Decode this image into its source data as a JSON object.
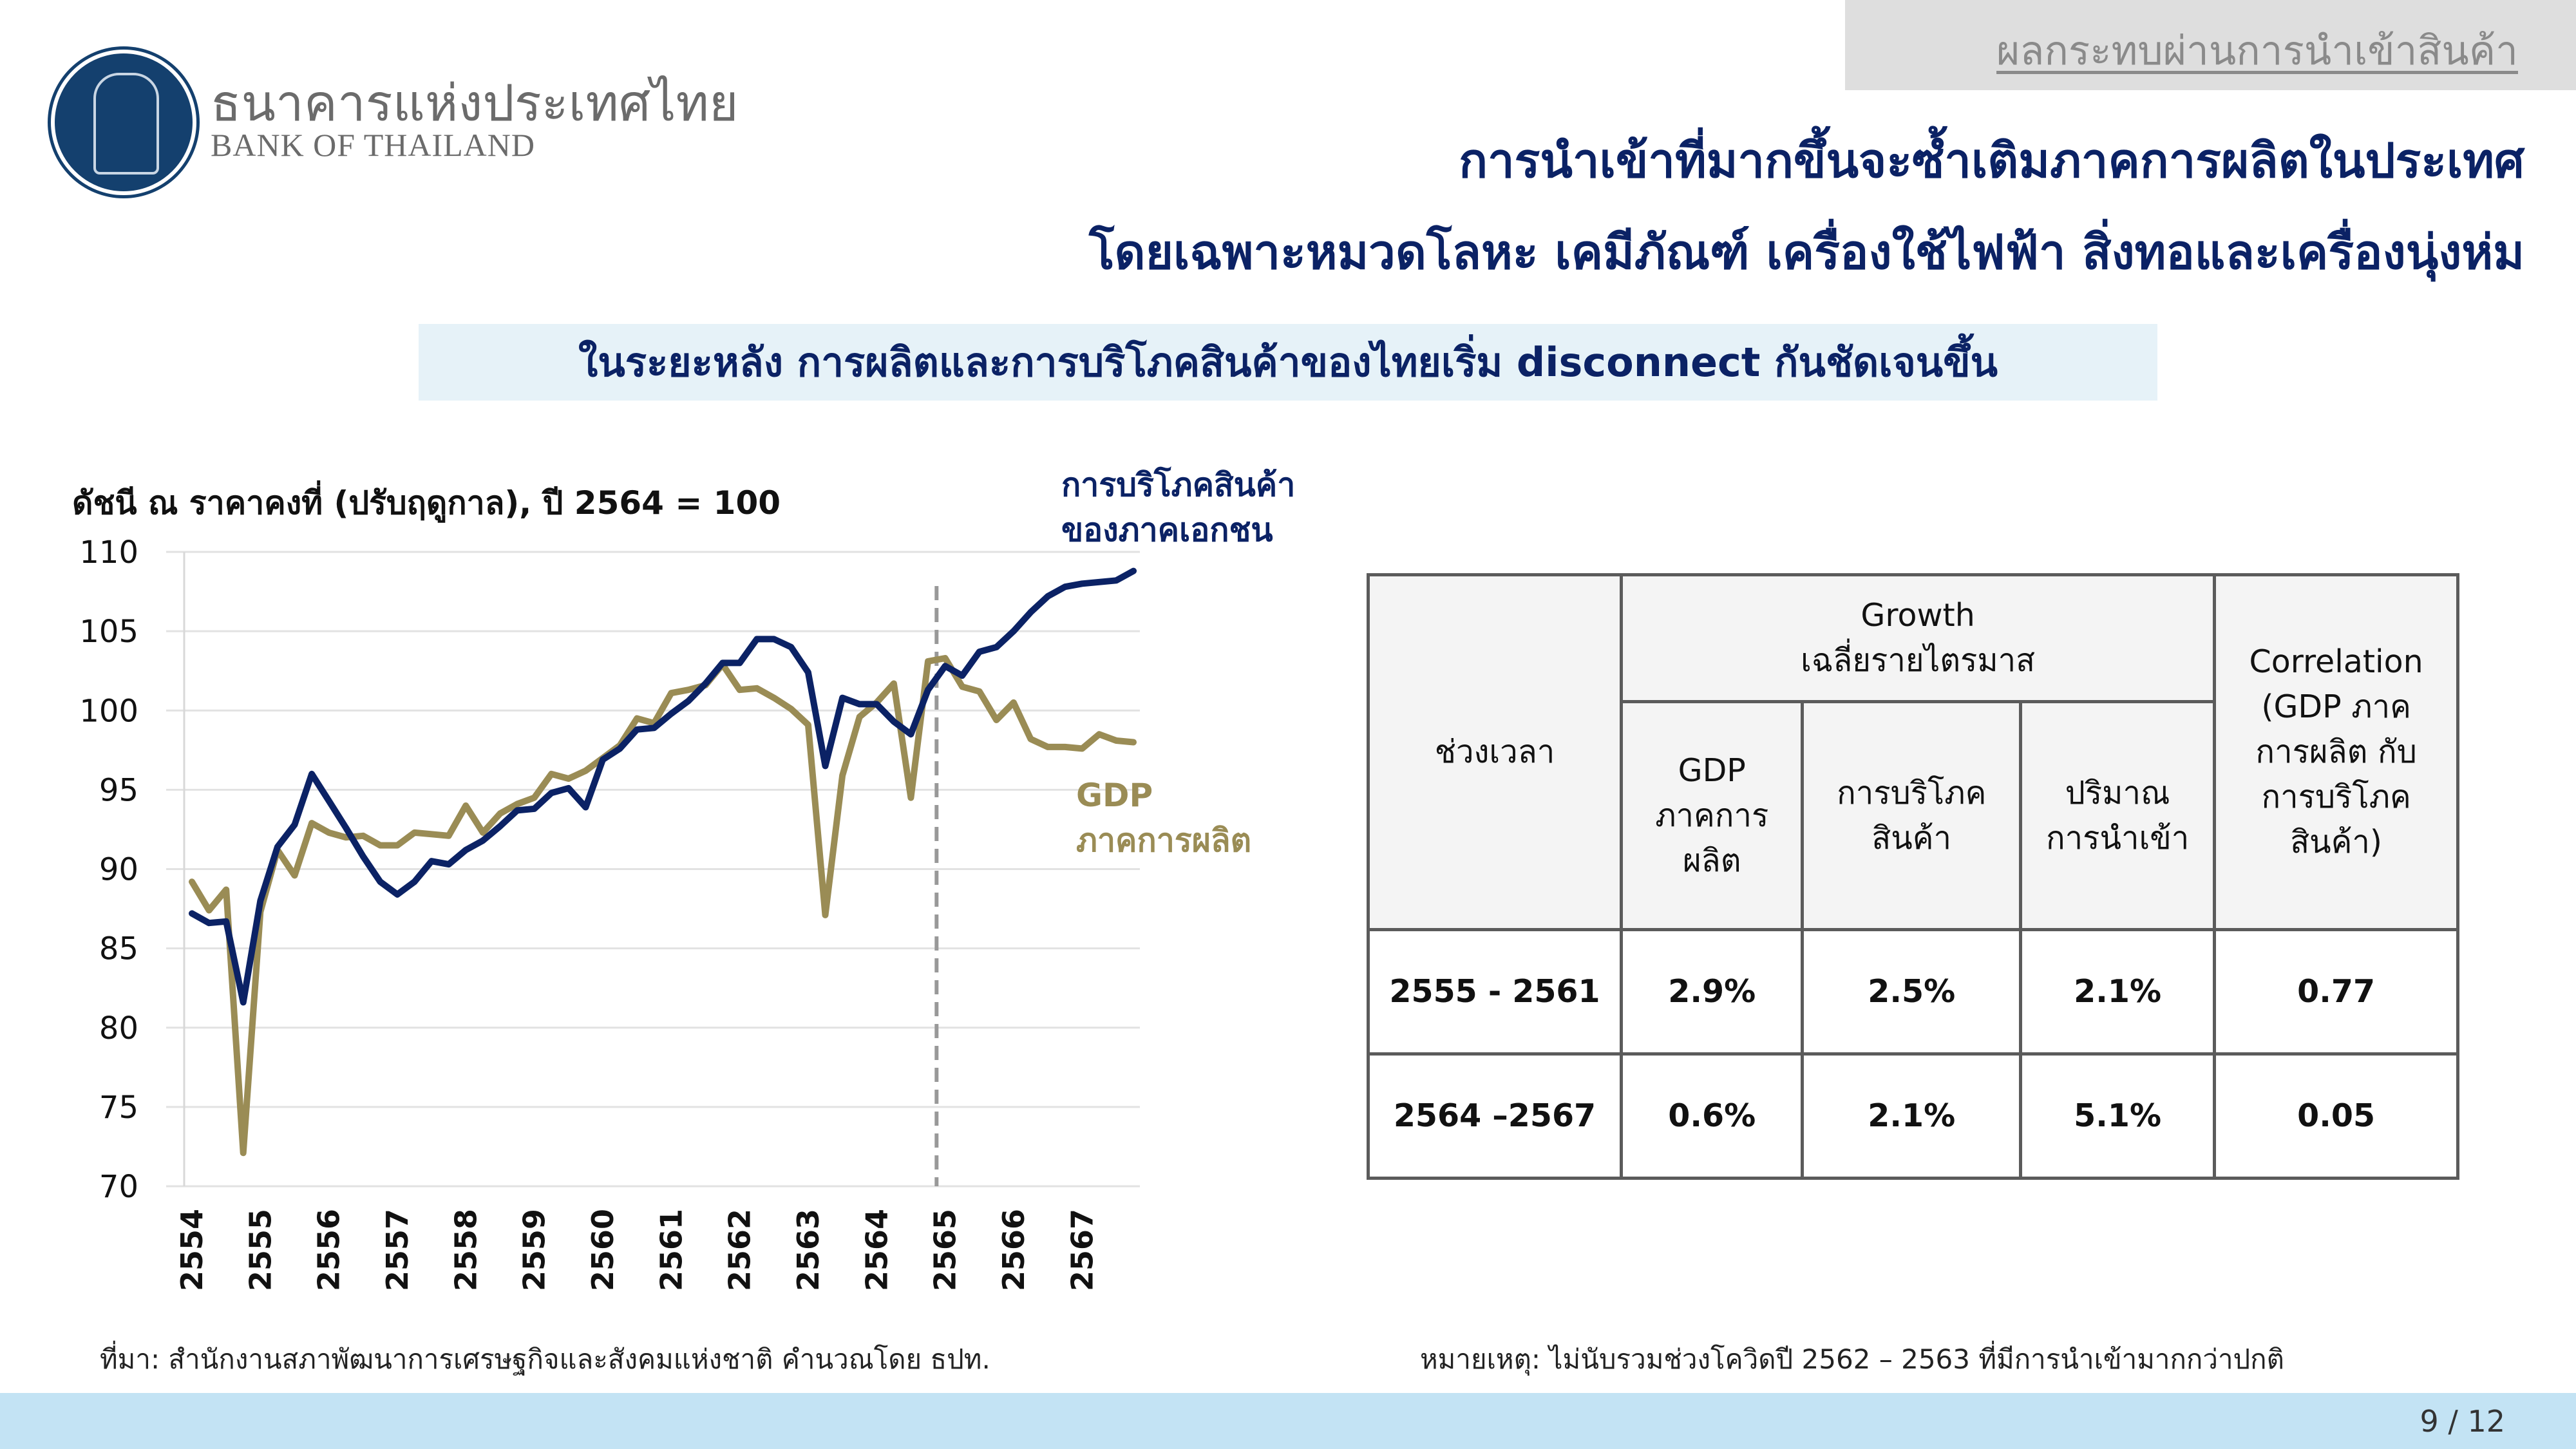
{
  "header": {
    "section": "ผลกระทบผ่านการนำเข้าสินค้า",
    "bank_name_th": "ธนาคารแห่งประเทศไทย",
    "bank_name_en": "BANK OF THAILAND",
    "title_line1": "การนำเข้าที่มากขึ้นจะซ้ำเติมภาคการผลิตในประเทศ",
    "title_line2": "โดยเฉพาะหมวดโลหะ เคมีภัณฑ์ เครื่องใช้ไฟฟ้า สิ่งทอและเครื่องนุ่งห่ม",
    "subtitle": "ในระยะหลัง การผลิตและการบริโภคสินค้าของไทยเริ่ม disconnect กันชัดเจนขึ้น"
  },
  "chart_data": {
    "type": "line",
    "ylabel": "ดัชนี ณ ราคาคงที่ (ปรับฤดูกาล), ปี 2564 = 100",
    "ylim": [
      70,
      110
    ],
    "yticks": [
      "70",
      "75",
      "80",
      "85",
      "90",
      "95",
      "100",
      "105",
      "110"
    ],
    "xtick_labels": [
      "2554",
      "2555",
      "2556",
      "2557",
      "2558",
      "2559",
      "2560",
      "2561",
      "2562",
      "2563",
      "2564",
      "2565",
      "2566",
      "2567"
    ],
    "frequency": "quarterly",
    "divider_after_index": 43,
    "series": [
      {
        "name": "การบริโภคสินค้าของภาคเอกชน",
        "label_lines": [
          "การบริโภคสินค้า",
          "ของภาคเอกชน"
        ],
        "color": "#0b2265",
        "values": [
          87.2,
          86.6,
          86.7,
          81.6,
          88.0,
          91.4,
          92.8,
          96.0,
          94.3,
          92.6,
          90.8,
          89.2,
          88.4,
          89.2,
          90.5,
          90.3,
          91.2,
          91.8,
          92.7,
          93.7,
          93.8,
          94.8,
          95.1,
          93.9,
          96.9,
          97.6,
          98.8,
          98.9,
          99.8,
          100.6,
          101.7,
          103.0,
          103.0,
          104.5,
          104.5,
          104.0,
          102.4,
          96.5,
          100.8,
          100.4,
          100.4,
          99.3,
          98.5,
          101.3,
          102.8,
          102.2,
          103.7,
          104.0,
          105.0,
          106.2,
          107.2,
          107.8,
          108.0,
          108.1,
          108.2,
          108.8
        ]
      },
      {
        "name": "GDP ภาคการผลิต",
        "label_lines": [
          "GDP",
          "ภาคการผลิต"
        ],
        "color": "#9a8c55",
        "values": [
          89.2,
          87.4,
          88.7,
          72.1,
          87.3,
          91.2,
          89.6,
          92.9,
          92.3,
          92.0,
          92.1,
          91.5,
          91.5,
          92.3,
          92.2,
          92.1,
          94.0,
          92.3,
          93.5,
          94.1,
          94.5,
          96.0,
          95.7,
          96.2,
          97.0,
          97.8,
          99.5,
          99.2,
          101.1,
          101.3,
          101.6,
          102.9,
          101.3,
          101.4,
          100.8,
          100.1,
          99.1,
          87.1,
          95.9,
          99.6,
          100.5,
          101.7,
          94.5,
          103.1,
          103.3,
          101.5,
          101.2,
          99.4,
          100.5,
          98.2,
          97.7,
          97.7,
          97.6,
          98.5,
          98.1,
          98.0
        ]
      }
    ]
  },
  "table": {
    "col_period": "ช่วงเวลา",
    "growth_header": [
      "Growth",
      "เฉลี่ยรายไตรมาส"
    ],
    "sub_headers": [
      [
        "GDP",
        "ภาคการ",
        "ผลิต"
      ],
      [
        "การบริโภค",
        "สินค้า"
      ],
      [
        "ปริมาณ",
        "การนำเข้า"
      ]
    ],
    "corr_header": [
      "Correlation",
      "(GDP ภาค",
      "การผลิต กับ",
      "การบริโภค",
      "สินค้า)"
    ],
    "rows": [
      [
        "2555 - 2561",
        "2.9%",
        "2.5%",
        "2.1%",
        "0.77"
      ],
      [
        "2564 –2567",
        "0.6%",
        "2.1%",
        "5.1%",
        "0.05"
      ]
    ]
  },
  "footer": {
    "source": "ที่มา: สำนักงานสภาพัฒนาการเศรษฐกิจและสังคมแห่งชาติ คำนวณโดย ธปท.",
    "note": "หมายเหตุ: ไม่นับรวมช่วงโควิดปี 2562 – 2563 ที่มีการนำเข้ามากกว่าปกติ",
    "page": "9 / 12"
  }
}
